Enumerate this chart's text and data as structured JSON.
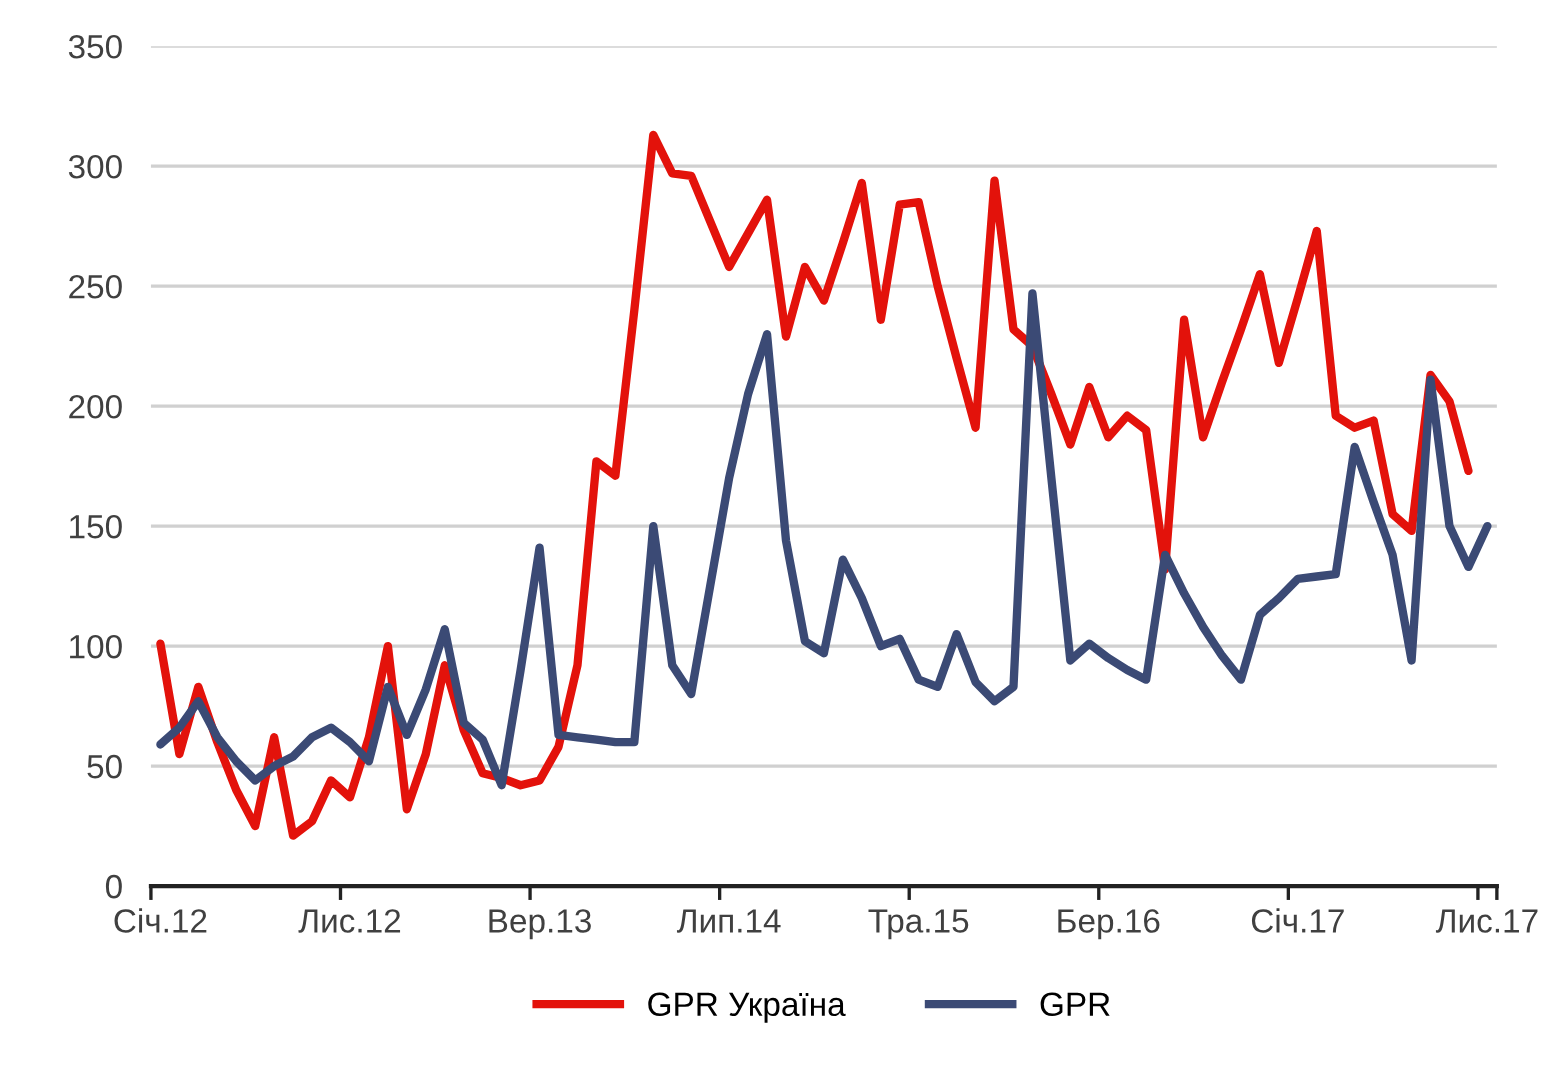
{
  "chart_data": {
    "type": "line",
    "categories": [
      "Січ.12",
      null,
      null,
      null,
      null,
      null,
      null,
      null,
      null,
      null,
      "Лис.12",
      null,
      null,
      null,
      null,
      null,
      null,
      null,
      null,
      null,
      "Вер.13",
      null,
      null,
      null,
      null,
      null,
      null,
      null,
      null,
      null,
      "Лип.14",
      null,
      null,
      null,
      null,
      null,
      null,
      null,
      null,
      null,
      "Тра.15",
      null,
      null,
      null,
      null,
      null,
      null,
      null,
      null,
      null,
      "Бер.16",
      null,
      null,
      null,
      null,
      null,
      null,
      null,
      null,
      null,
      "Січ.17",
      null,
      null,
      null,
      null,
      null,
      null,
      null,
      null,
      null,
      "Лис.17"
    ],
    "series": [
      {
        "name": "GPR Україна",
        "color": "#e3120b",
        "values": [
          101,
          55,
          83,
          60,
          40,
          25,
          62,
          21,
          27,
          44,
          37,
          62,
          100,
          32,
          55,
          92,
          65,
          47,
          45,
          42,
          44,
          58,
          92,
          177,
          171,
          240,
          313,
          297,
          296,
          277,
          258,
          272,
          286,
          229,
          258,
          244,
          268,
          293,
          236,
          284,
          285,
          250,
          220,
          191,
          294,
          232,
          225,
          205,
          184,
          208,
          187,
          196,
          190,
          132,
          236,
          187,
          210,
          232,
          255,
          218,
          245,
          273,
          196,
          191,
          194,
          155,
          148,
          213,
          202,
          173,
          null
        ]
      },
      {
        "name": "GPR",
        "color": "#3b4a75",
        "values": [
          59,
          66,
          77,
          62,
          52,
          44,
          50,
          54,
          62,
          66,
          60,
          52,
          83,
          63,
          82,
          107,
          68,
          61,
          42,
          90,
          141,
          63,
          62,
          61,
          60,
          60,
          150,
          92,
          80,
          125,
          170,
          205,
          230,
          144,
          102,
          97,
          136,
          120,
          100,
          103,
          86,
          83,
          105,
          85,
          77,
          83,
          247,
          170,
          94,
          101,
          95,
          90,
          86,
          138,
          122,
          108,
          96,
          86,
          113,
          120,
          128,
          129,
          130,
          183,
          160,
          138,
          94,
          211,
          150,
          133,
          150
        ]
      }
    ],
    "ylim": [
      0,
      350
    ],
    "yticks": [
      0,
      50,
      100,
      150,
      200,
      250,
      300,
      350
    ],
    "grid": "y",
    "legend": "bottom",
    "marker": "none",
    "line_style": "solid"
  }
}
